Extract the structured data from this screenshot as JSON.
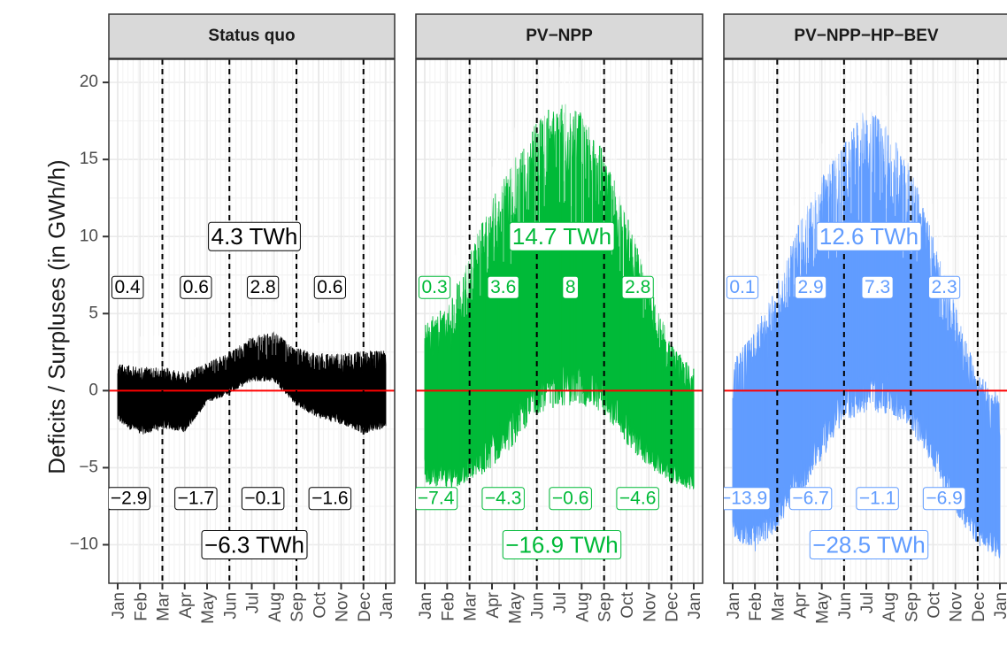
{
  "chart_data": {
    "type": "area",
    "ylabel": "Deficits  / Surpluses (in GWh/h)",
    "ylim": [
      -12.5,
      21.5
    ],
    "yticks": [
      "20",
      "15",
      "10",
      "5",
      "0",
      "−5",
      "−10"
    ],
    "ytick_values": [
      20,
      15,
      10,
      5,
      0,
      -5,
      -10
    ],
    "months": [
      "Jan",
      "Feb",
      "Mar",
      "Apr",
      "May",
      "Jun",
      "Jul",
      "Aug",
      "Sep",
      "Oct",
      "Nov",
      "Dec",
      "Jan"
    ],
    "season_boundaries_month": [
      2,
      5,
      8,
      11
    ],
    "zero_line_color": "#ff0000",
    "facets": [
      {
        "title": "Status quo",
        "color": "#000000",
        "surplus_total": "4.3 TWh",
        "deficit_total": "−6.3 TWh",
        "surplus_quarters": [
          "0.4",
          "0.6",
          "2.8",
          "0.6"
        ],
        "deficit_quarters": [
          "−2.9",
          "−1.7",
          "−0.1",
          "−1.6"
        ],
        "monthly_envelope": {
          "upper": [
            1.8,
            1.5,
            1.6,
            1.2,
            1.8,
            2.5,
            3.5,
            3.8,
            2.8,
            2.4,
            2.4,
            2.6,
            2.6
          ],
          "lower": [
            -2.0,
            -2.9,
            -2.5,
            -2.7,
            -0.8,
            -0.2,
            0.6,
            0.6,
            -1.0,
            -1.8,
            -2.2,
            -2.8,
            -2.4
          ]
        }
      },
      {
        "title": "PV−NPP",
        "color": "#00ba38",
        "surplus_total": "14.7 TWh",
        "deficit_total": "−16.9 TWh",
        "surplus_quarters": [
          "0.3",
          "3.6",
          "8",
          "2.8"
        ],
        "deficit_quarters": [
          "−7.4",
          "−4.3",
          "−0.6",
          "−4.6"
        ],
        "monthly_envelope": {
          "upper": [
            4.5,
            5.5,
            9.0,
            12.5,
            15.0,
            17.5,
            19.0,
            18.0,
            15.5,
            11.5,
            7.0,
            3.0,
            1.5
          ],
          "lower": [
            -6.0,
            -6.5,
            -6.0,
            -5.0,
            -3.5,
            -1.5,
            -1.0,
            -1.0,
            -1.5,
            -3.5,
            -5.0,
            -6.0,
            -6.5
          ]
        }
      },
      {
        "title": "PV−NPP−HP−BEV",
        "color": "#619cff",
        "surplus_total": "12.6 TWh",
        "deficit_total": "−28.5 TWh",
        "surplus_quarters": [
          "0.1",
          "2.9",
          "7.3",
          "2.3"
        ],
        "deficit_quarters": [
          "−13.9",
          "−6.7",
          "−1.1",
          "−6.9"
        ],
        "monthly_envelope": {
          "upper": [
            2.0,
            4.0,
            7.0,
            11.0,
            14.0,
            16.0,
            18.5,
            17.0,
            14.5,
            10.0,
            5.5,
            1.0,
            0.0
          ],
          "lower": [
            -9.5,
            -10.5,
            -9.0,
            -7.0,
            -4.5,
            -2.0,
            -1.5,
            -1.5,
            -2.5,
            -5.0,
            -8.0,
            -10.0,
            -11.0
          ]
        }
      }
    ]
  }
}
